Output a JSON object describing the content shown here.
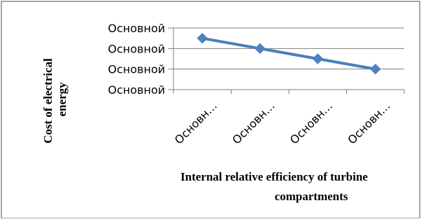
{
  "chart_data": {
    "type": "line",
    "xlabel": "Internal relative efficiency of turbine compartments",
    "ylabel": "Cost of electrical energy",
    "categories": [
      "Основн…",
      "Основн…",
      "Основн…",
      "Основн…"
    ],
    "y_tick_labels": [
      "Основной",
      "Основной",
      "Основной",
      "Основной"
    ],
    "ylim": [
      0,
      3
    ],
    "series": [
      {
        "values": [
          2.5,
          2.0,
          1.5,
          1.0
        ]
      }
    ],
    "grid": true,
    "legend": "none",
    "colors": {
      "line": "#4a7ebb",
      "marker": "#4f81bd",
      "grid": "#7f7f7f",
      "frame": "#888888"
    }
  }
}
